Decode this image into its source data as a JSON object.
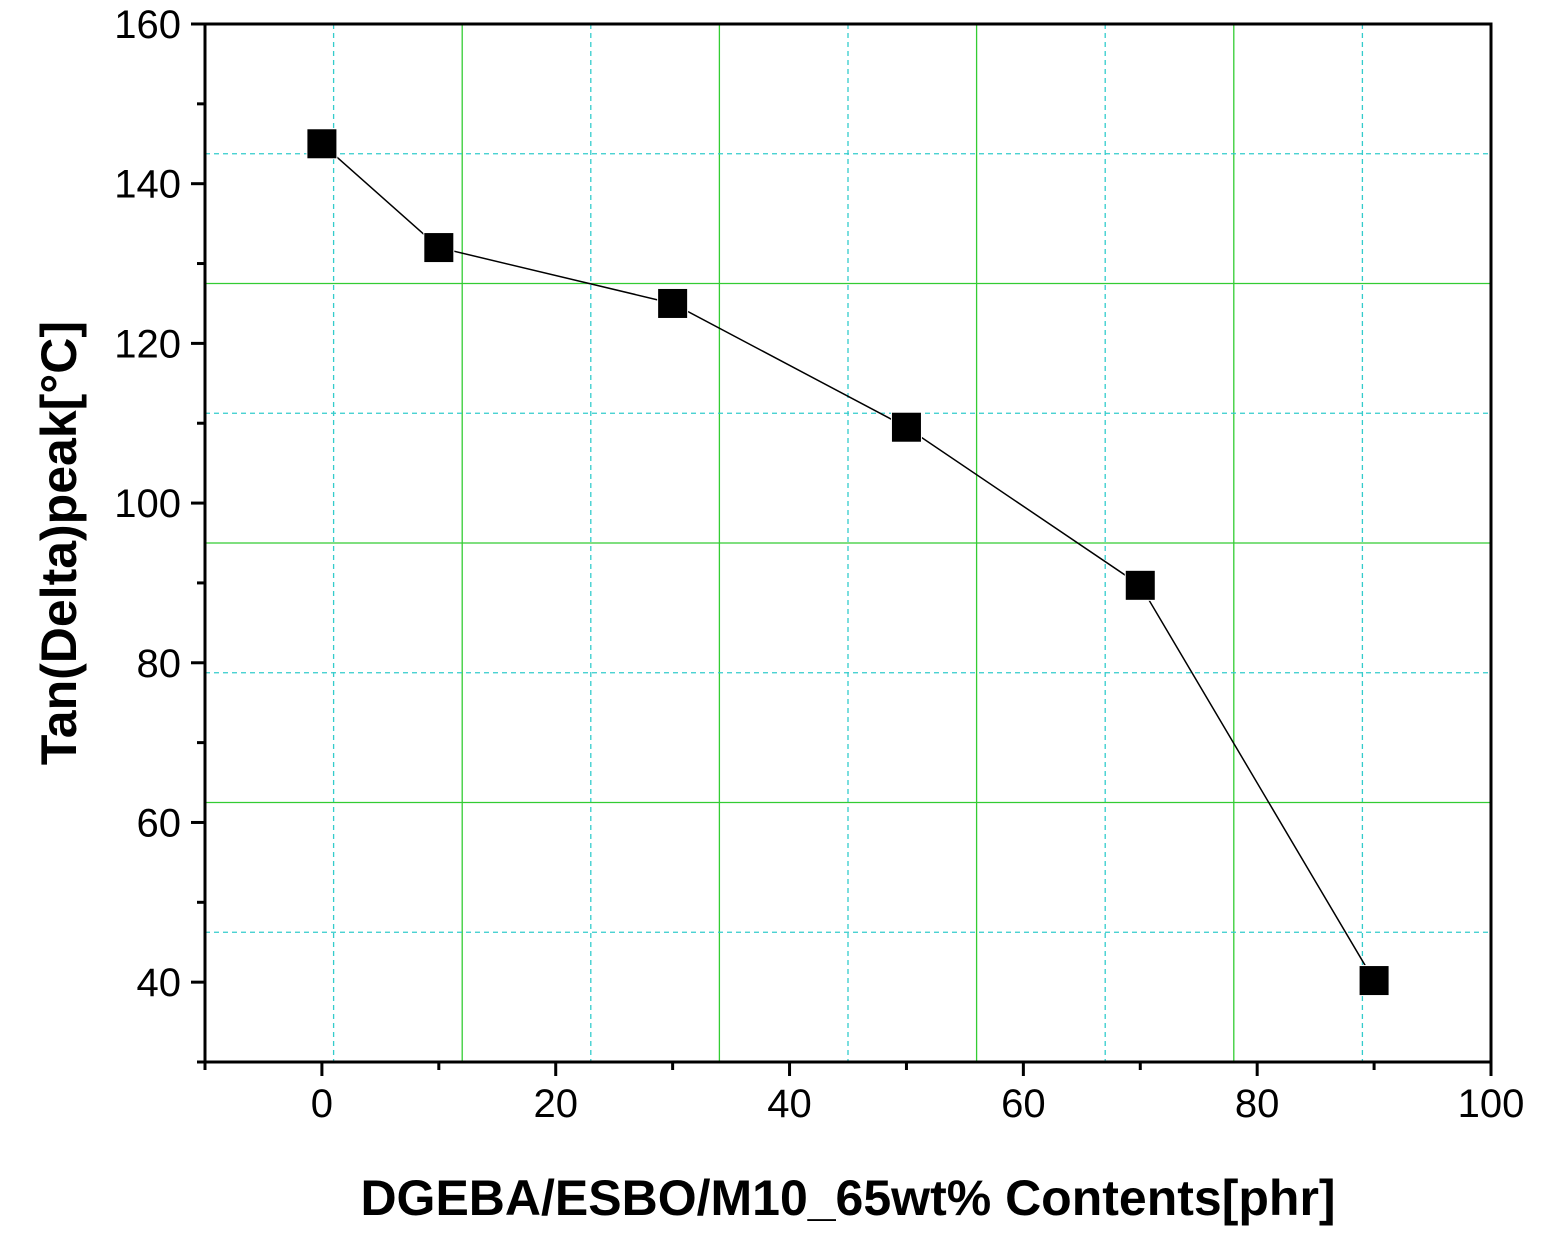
{
  "chart_data": {
    "type": "line",
    "title": "",
    "xlabel": "DGEBA/ESBO/M10_65wt% Contents[phr]",
    "ylabel": "Tan(Delta)peak[°C]",
    "xlim": [
      -10,
      100
    ],
    "ylim": [
      30,
      160
    ],
    "x_ticks": [
      0,
      20,
      40,
      60,
      80,
      100
    ],
    "y_ticks": [
      40,
      60,
      80,
      100,
      120,
      140,
      160
    ],
    "grid": true,
    "legend": "none",
    "marker": "square",
    "colors": {
      "series": "#000000",
      "major_grid": "#33cc33",
      "minor_grid": "#33cccc",
      "axis": "#000000"
    },
    "series": [
      {
        "x": [
          0,
          10,
          30,
          50,
          70,
          90
        ],
        "y": [
          145,
          132,
          125,
          109.5,
          89.7,
          40.2
        ]
      }
    ]
  }
}
